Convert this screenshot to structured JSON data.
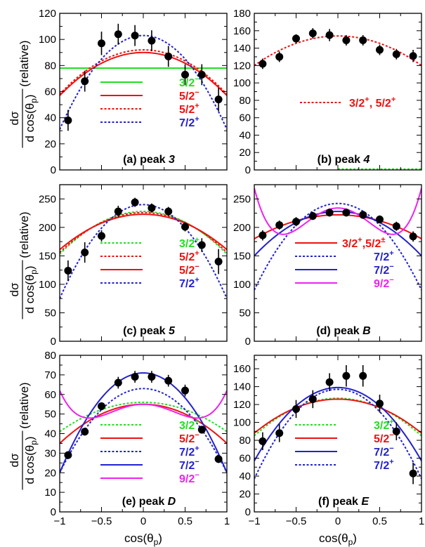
{
  "axes": {
    "x_label_main": "cos(θ",
    "x_label_sub": "p",
    "x_label_close": ")",
    "y_label_numer": "dσ",
    "y_label_denom_main": "d cos(θ",
    "y_label_denom_sub": "p",
    "y_label_denom_close": ")",
    "y_label_suffix": "(relative)",
    "x_ticks": [
      "−1",
      "−0.5",
      "0",
      "0.5",
      "1"
    ]
  },
  "colors": {
    "green": "#22dd22",
    "red": "#ee1111",
    "blue": "#2222cc",
    "magenta": "#ee22ee",
    "black": "#000000"
  },
  "chart_data": [
    {
      "type": "scatter",
      "title": "(a) peak 3",
      "label_text": "(a) peak ",
      "label_num": "3",
      "xlim": [
        -1,
        1
      ],
      "ylim": [
        0,
        120
      ],
      "yticks": [
        0,
        20,
        40,
        60,
        80,
        100,
        120
      ],
      "points": [
        {
          "x": -0.9,
          "y": 38,
          "err": 8
        },
        {
          "x": -0.7,
          "y": 68,
          "err": 8
        },
        {
          "x": -0.5,
          "y": 97,
          "err": 9
        },
        {
          "x": -0.3,
          "y": 104,
          "err": 8
        },
        {
          "x": -0.1,
          "y": 103,
          "err": 8
        },
        {
          "x": 0.1,
          "y": 99,
          "err": 8
        },
        {
          "x": 0.3,
          "y": 87,
          "err": 8
        },
        {
          "x": 0.5,
          "y": 73,
          "err": 8
        },
        {
          "x": 0.7,
          "y": 73,
          "err": 8
        },
        {
          "x": 0.9,
          "y": 54,
          "err": 9
        }
      ],
      "series": [
        {
          "name": "3/2",
          "sup": "−",
          "color": "green",
          "dash": false,
          "c": [
            78,
            0,
            0
          ]
        },
        {
          "name": "5/2",
          "sup": "−",
          "color": "red",
          "dash": false,
          "c": [
            90,
            -33,
            0
          ]
        },
        {
          "name": "5/2",
          "sup": "+",
          "color": "red",
          "dash": true,
          "c": [
            92,
            -34,
            0
          ]
        },
        {
          "name": "7/2",
          "sup": "+",
          "color": "blue",
          "dash": true,
          "c": [
            103,
            -72,
            0
          ]
        }
      ]
    },
    {
      "type": "scatter",
      "title": "(b) peak 4",
      "label_text": "(b) peak ",
      "label_num": "4",
      "xlim": [
        -1,
        1
      ],
      "ylim": [
        0,
        180
      ],
      "yticks": [
        0,
        20,
        40,
        60,
        80,
        100,
        120,
        140,
        160,
        180
      ],
      "points": [
        {
          "x": -0.9,
          "y": 122,
          "err": 6
        },
        {
          "x": -0.7,
          "y": 130,
          "err": 6
        },
        {
          "x": -0.5,
          "y": 151,
          "err": 5
        },
        {
          "x": -0.3,
          "y": 157,
          "err": 6
        },
        {
          "x": -0.1,
          "y": 155,
          "err": 7
        },
        {
          "x": 0.1,
          "y": 149,
          "err": 6
        },
        {
          "x": 0.3,
          "y": 149,
          "err": 6
        },
        {
          "x": 0.5,
          "y": 138,
          "err": 6
        },
        {
          "x": 0.7,
          "y": 133,
          "err": 6
        },
        {
          "x": 0.9,
          "y": 131,
          "err": 7
        }
      ],
      "series": [
        {
          "name": "3/2",
          "sup": "+",
          "name2": ", 5/2",
          "sup2": "+",
          "color": "red",
          "dash": true,
          "c": [
            154,
            -34,
            0
          ]
        },
        {
          "name": "",
          "color": "green",
          "dash": true,
          "c": [
            1,
            0,
            0
          ],
          "xr": [
            0.0,
            1.0
          ],
          "nolegend": true
        }
      ]
    },
    {
      "type": "scatter",
      "title": "(c) peak 5",
      "label_text": "(c) peak ",
      "label_num": "5",
      "xlim": [
        -1,
        1
      ],
      "ylim": [
        0,
        275
      ],
      "yticks": [
        0,
        50,
        100,
        150,
        200,
        250
      ],
      "points": [
        {
          "x": -0.9,
          "y": 124,
          "err": 18
        },
        {
          "x": -0.7,
          "y": 156,
          "err": 18
        },
        {
          "x": -0.5,
          "y": 185,
          "err": 10
        },
        {
          "x": -0.3,
          "y": 228,
          "err": 10
        },
        {
          "x": -0.1,
          "y": 244,
          "err": 8
        },
        {
          "x": 0.1,
          "y": 234,
          "err": 8
        },
        {
          "x": 0.3,
          "y": 228,
          "err": 8
        },
        {
          "x": 0.5,
          "y": 201,
          "err": 8
        },
        {
          "x": 0.7,
          "y": 169,
          "err": 12
        },
        {
          "x": 0.9,
          "y": 140,
          "err": 22
        }
      ],
      "series": [
        {
          "name": "3/2",
          "sup": "+",
          "color": "green",
          "dash": true,
          "c": [
            228,
            -75,
            0
          ]
        },
        {
          "name": "5/2",
          "sup": "+",
          "color": "red",
          "dash": true,
          "c": [
            226,
            -70,
            0
          ]
        },
        {
          "name": "5/2",
          "sup": "−",
          "color": "red",
          "dash": false,
          "c": [
            223,
            -62,
            0
          ]
        },
        {
          "name": "7/2",
          "sup": "+",
          "color": "blue",
          "dash": true,
          "c": [
            240,
            -165,
            0
          ]
        }
      ]
    },
    {
      "type": "scatter",
      "title": "(d) peak B",
      "label_text": "(d) peak ",
      "label_num": "B",
      "xlim": [
        -1,
        1
      ],
      "ylim": [
        0,
        275
      ],
      "yticks": [
        0,
        50,
        100,
        150,
        200,
        250
      ],
      "points": [
        {
          "x": -0.9,
          "y": 186,
          "err": 9
        },
        {
          "x": -0.7,
          "y": 204,
          "err": 8
        },
        {
          "x": -0.5,
          "y": 210,
          "err": 8
        },
        {
          "x": -0.3,
          "y": 220,
          "err": 7
        },
        {
          "x": -0.1,
          "y": 226,
          "err": 7
        },
        {
          "x": 0.1,
          "y": 226,
          "err": 7
        },
        {
          "x": 0.3,
          "y": 222,
          "err": 7
        },
        {
          "x": 0.5,
          "y": 214,
          "err": 7
        },
        {
          "x": 0.7,
          "y": 202,
          "err": 8
        },
        {
          "x": 0.9,
          "y": 184,
          "err": 9
        }
      ],
      "series": [
        {
          "name": "3/2",
          "sup": "+",
          "name2": ",5/2",
          "sup2": "±",
          "color": "red",
          "dash": false,
          "c": [
            222,
            -42,
            0
          ]
        },
        {
          "name": "7/2",
          "sup": "+",
          "color": "blue",
          "dash": true,
          "c": [
            242,
            -152,
            0
          ]
        },
        {
          "name": "7/2",
          "sup": "−",
          "color": "blue",
          "dash": false,
          "c": [
            228,
            -78,
            0
          ]
        },
        {
          "name": "9/2",
          "sup": "−",
          "color": "magenta",
          "dash": false,
          "c": [
            234,
            -215,
            250
          ]
        }
      ]
    },
    {
      "type": "scatter",
      "title": "(e) peak D",
      "label_text": "(e) peak ",
      "label_num": "D",
      "xlim": [
        -1,
        1
      ],
      "ylim": [
        0,
        80
      ],
      "yticks": [
        0,
        10,
        20,
        30,
        40,
        50,
        60,
        70,
        80
      ],
      "points": [
        {
          "x": -0.9,
          "y": 29,
          "err": 2
        },
        {
          "x": -0.7,
          "y": 41,
          "err": 2
        },
        {
          "x": -0.5,
          "y": 54,
          "err": 2
        },
        {
          "x": -0.3,
          "y": 66,
          "err": 3
        },
        {
          "x": -0.1,
          "y": 69,
          "err": 3
        },
        {
          "x": 0.1,
          "y": 69,
          "err": 3
        },
        {
          "x": 0.3,
          "y": 67,
          "err": 3
        },
        {
          "x": 0.5,
          "y": 62,
          "err": 3
        },
        {
          "x": 0.7,
          "y": 42,
          "err": 2
        },
        {
          "x": 0.9,
          "y": 27,
          "err": 2
        }
      ],
      "series": [
        {
          "name": "3/2",
          "sup": "+",
          "color": "green",
          "dash": true,
          "c": [
            56,
            -15,
            0
          ]
        },
        {
          "name": "5/2",
          "sup": "−",
          "color": "red",
          "dash": false,
          "c": [
            55,
            -20,
            0
          ]
        },
        {
          "name": "7/2",
          "sup": "+",
          "color": "blue",
          "dash": true,
          "c": [
            63,
            -43,
            0
          ]
        },
        {
          "name": "7/2",
          "sup": "−",
          "color": "blue",
          "dash": false,
          "c": [
            71,
            -51,
            0
          ]
        },
        {
          "name": "9/2",
          "sup": "−",
          "color": "magenta",
          "dash": false,
          "c": [
            55,
            -34,
            41
          ]
        }
      ]
    },
    {
      "type": "scatter",
      "title": "(f) peak E",
      "label_text": "(f) peak ",
      "label_num": "E",
      "xlim": [
        -1,
        1
      ],
      "ylim": [
        0,
        175
      ],
      "yticks": [
        0,
        20,
        40,
        60,
        80,
        100,
        120,
        140,
        160
      ],
      "points": [
        {
          "x": -0.9,
          "y": 79,
          "err": 10
        },
        {
          "x": -0.7,
          "y": 88,
          "err": 10
        },
        {
          "x": -0.5,
          "y": 115,
          "err": 10
        },
        {
          "x": -0.3,
          "y": 126,
          "err": 10
        },
        {
          "x": -0.1,
          "y": 145,
          "err": 10
        },
        {
          "x": 0.1,
          "y": 152,
          "err": 12
        },
        {
          "x": 0.3,
          "y": 152,
          "err": 12
        },
        {
          "x": 0.5,
          "y": 121,
          "err": 10
        },
        {
          "x": 0.7,
          "y": 90,
          "err": 10
        },
        {
          "x": 0.9,
          "y": 43,
          "err": 12
        }
      ],
      "series": [
        {
          "name": "3/2",
          "sup": "+",
          "color": "green",
          "dash": true,
          "c": [
            127,
            -42,
            0
          ]
        },
        {
          "name": "5/2",
          "sup": "−",
          "color": "red",
          "dash": false,
          "c": [
            126,
            -38,
            0
          ]
        },
        {
          "name": "7/2",
          "sup": "−",
          "color": "blue",
          "dash": false,
          "c": [
            139,
            -82,
            0
          ]
        },
        {
          "name": "7/2",
          "sup": "+",
          "color": "blue",
          "dash": true,
          "c": [
            137,
            -100,
            0
          ]
        }
      ]
    }
  ]
}
